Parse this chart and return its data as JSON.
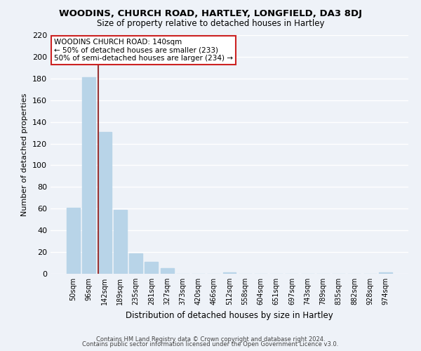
{
  "title": "WOODINS, CHURCH ROAD, HARTLEY, LONGFIELD, DA3 8DJ",
  "subtitle": "Size of property relative to detached houses in Hartley",
  "xlabel": "Distribution of detached houses by size in Hartley",
  "ylabel": "Number of detached properties",
  "bar_labels": [
    "50sqm",
    "96sqm",
    "142sqm",
    "189sqm",
    "235sqm",
    "281sqm",
    "327sqm",
    "373sqm",
    "420sqm",
    "466sqm",
    "512sqm",
    "558sqm",
    "604sqm",
    "651sqm",
    "697sqm",
    "743sqm",
    "789sqm",
    "835sqm",
    "882sqm",
    "928sqm",
    "974sqm"
  ],
  "bar_values": [
    61,
    181,
    131,
    59,
    19,
    11,
    5,
    0,
    0,
    0,
    1,
    0,
    0,
    0,
    0,
    0,
    0,
    0,
    0,
    0,
    1
  ],
  "bar_color": "#b8d4e8",
  "vline_color": "#993333",
  "ylim": [
    0,
    220
  ],
  "yticks": [
    0,
    20,
    40,
    60,
    80,
    100,
    120,
    140,
    160,
    180,
    200,
    220
  ],
  "background_color": "#eef2f8",
  "grid_color": "#ffffff",
  "annotation_title": "WOODINS CHURCH ROAD: 140sqm",
  "annotation_line2": "← 50% of detached houses are smaller (233)",
  "annotation_line3": "50% of semi-detached houses are larger (234) →",
  "footer_line1": "Contains HM Land Registry data © Crown copyright and database right 2024.",
  "footer_line2": "Contains public sector information licensed under the Open Government Licence v3.0."
}
